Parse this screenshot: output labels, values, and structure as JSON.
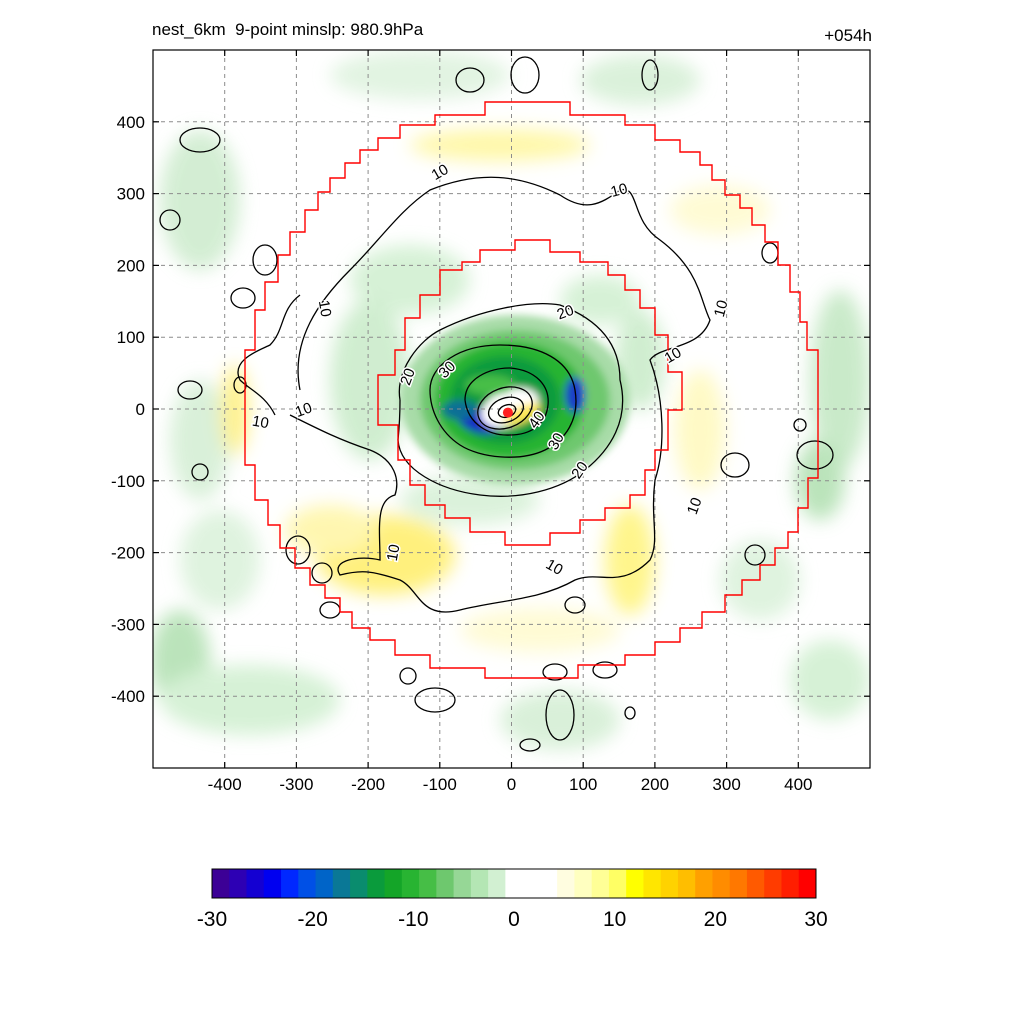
{
  "header": {
    "title": "nest_6km  9-point minslp: 980.9hPa",
    "time_label": "+054h"
  },
  "chart_data": {
    "type": "heatmap",
    "title": "nest_6km  9-point minslp: 980.9hPa",
    "time_label": "+054h",
    "xlim": [
      -500,
      500
    ],
    "ylim": [
      -500,
      500
    ],
    "x_ticks": [
      -400,
      -300,
      -200,
      -100,
      0,
      100,
      200,
      300,
      400
    ],
    "y_ticks": [
      400,
      300,
      200,
      100,
      0,
      -100,
      -200,
      -300,
      -400
    ],
    "grid": true,
    "colorbar": {
      "range": [
        -30,
        30
      ],
      "ticks": [
        -30,
        -20,
        -10,
        0,
        10,
        20,
        30
      ],
      "colors": [
        "#3c0096",
        "#2d00b4",
        "#1400d2",
        "#0000f0",
        "#0028ff",
        "#0050e6",
        "#0064c8",
        "#0a7896",
        "#0a8c6e",
        "#0a9b3c",
        "#14a528",
        "#28b432",
        "#46be46",
        "#6ec86e",
        "#96d796",
        "#b4e6b4",
        "#d2f0d2",
        "#ffffff",
        "#ffffff",
        "#ffffff",
        "#fffde0",
        "#ffffc0",
        "#ffff96",
        "#ffff64",
        "#ffff00",
        "#ffe600",
        "#ffd200",
        "#ffbe00",
        "#ffa000",
        "#ff8c00",
        "#ff7800",
        "#ff5a00",
        "#ff3c00",
        "#ff1e00",
        "#ff0000"
      ]
    },
    "center_marker": {
      "x": -5,
      "y": -5,
      "color": "#ff2020"
    },
    "contour_labels": [
      {
        "text": "10",
        "x": -100,
        "y": 330,
        "rot": -30
      },
      {
        "text": "10",
        "x": 150,
        "y": 305,
        "rot": -15
      },
      {
        "text": "10",
        "x": -260,
        "y": 140,
        "rot": 80
      },
      {
        "text": "10",
        "x": 292,
        "y": 140,
        "rot": -75
      },
      {
        "text": "10",
        "x": 225,
        "y": 75,
        "rot": -30
      },
      {
        "text": "10",
        "x": -290,
        "y": -1,
        "rot": -20
      },
      {
        "text": "10",
        "x": -350,
        "y": -18,
        "rot": 10
      },
      {
        "text": "10",
        "x": 255,
        "y": -135,
        "rot": -70
      },
      {
        "text": "10",
        "x": -165,
        "y": -200,
        "rot": -80
      },
      {
        "text": "10",
        "x": 60,
        "y": -220,
        "rot": 30
      },
      {
        "text": "20",
        "x": 75,
        "y": 135,
        "rot": -20
      },
      {
        "text": "20",
        "x": -145,
        "y": 45,
        "rot": -70
      },
      {
        "text": "20",
        "x": 95,
        "y": -85,
        "rot": -55
      },
      {
        "text": "30",
        "x": -90,
        "y": 55,
        "rot": -45
      },
      {
        "text": "30",
        "x": 62,
        "y": -45,
        "rot": -60
      },
      {
        "text": "40",
        "x": 35,
        "y": -15,
        "rot": -55
      }
    ],
    "colors": {
      "boundary": "#ff0000",
      "contour": "#000000",
      "grid": "#8c8c8c"
    }
  }
}
